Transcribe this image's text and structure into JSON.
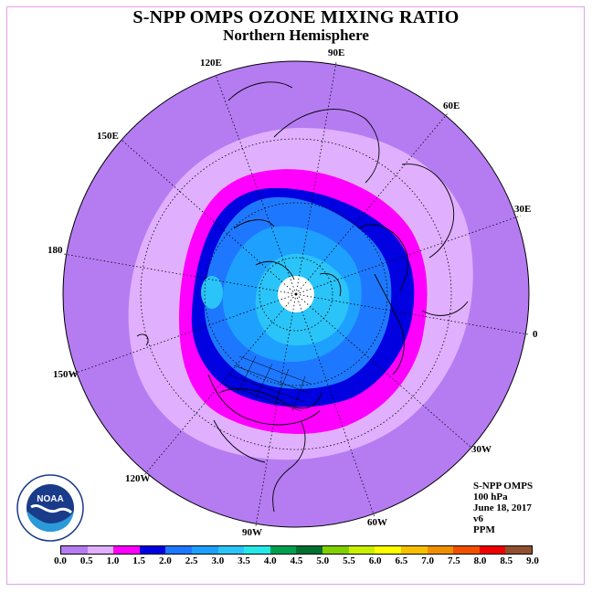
{
  "title": "S-NPP OMPS OZONE MIXING RATIO",
  "subtitle": "Northern Hemisphere",
  "longitude_labels": [
    "90E",
    "60E",
    "30E",
    "0",
    "30W",
    "60W",
    "90W",
    "120W",
    "150W",
    "180",
    "150E",
    "120E"
  ],
  "info": {
    "instrument": "S-NPP OMPS",
    "pressure": "100 hPa",
    "date": "June 18, 2017",
    "version": "v6",
    "units": "PPM"
  },
  "colorbar": {
    "ticks": [
      "0.0",
      "0.5",
      "1.0",
      "1.5",
      "2.0",
      "2.5",
      "3.0",
      "3.5",
      "4.0",
      "4.5",
      "5.0",
      "5.5",
      "6.0",
      "6.5",
      "7.0",
      "7.5",
      "8.0",
      "8.5",
      "9.0"
    ],
    "colors": [
      "#b57cf2",
      "#e0b0ff",
      "#ff00ff",
      "#0000e0",
      "#1e78ff",
      "#1ea0ff",
      "#2ac4f8",
      "#26e8e8",
      "#00a050",
      "#007030",
      "#80d000",
      "#c8f000",
      "#ffff00",
      "#f8c000",
      "#f09000",
      "#f05000",
      "#f00000",
      "#905030"
    ]
  },
  "map_colors": {
    "outer": "#b57cf2",
    "ring_0_5": "#e0b0ff",
    "ring_1_0": "#ff00ff",
    "ring_1_5": "#0000e0",
    "ring_2_0": "#1e78ff",
    "ring_2_5": "#1ea0ff",
    "ring_3_0": "#2ac4f8",
    "pole": "#ffffff"
  },
  "logo_text": "NOAA"
}
